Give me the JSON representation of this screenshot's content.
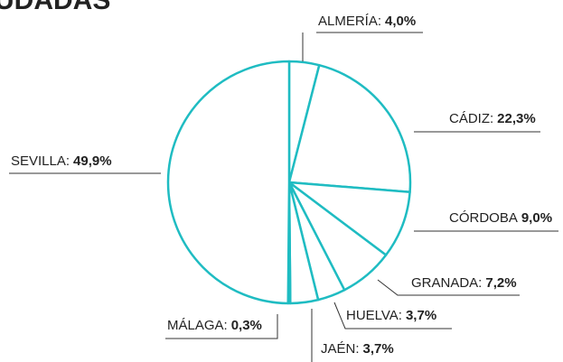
{
  "chart_data": {
    "type": "pie",
    "title": "UDADAS",
    "categories": [
      "ALMERÍA:",
      "CÁDIZ:",
      "CÓRDOBA",
      "GRANADA:",
      "HUELVA:",
      "JAÉN:",
      "MÁLAGA:",
      "SEVILLA:"
    ],
    "values": [
      4.0,
      22.3,
      9.0,
      7.2,
      3.7,
      3.7,
      0.3,
      49.9
    ],
    "value_labels": [
      "4,0%",
      "22,3%",
      "9,0%",
      "7,2%",
      "3,7%",
      "3,7%",
      "0,3%",
      "49,9%"
    ],
    "color": "#1fbcc2"
  }
}
